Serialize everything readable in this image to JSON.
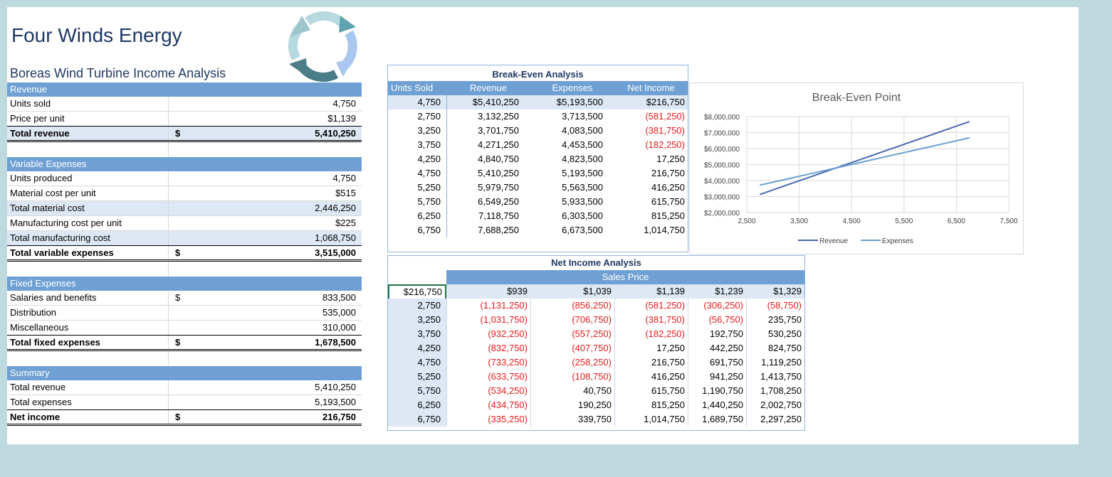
{
  "company": "Four Winds Energy",
  "subtitle": "Boreas Wind Turbine Income Analysis",
  "logo_icon": "cycle-arrows-icon",
  "income": {
    "revenue_header": "Revenue",
    "units_sold_label": "Units sold",
    "units_sold": "4,750",
    "price_label": "Price per unit",
    "price": "$1,139",
    "total_revenue_label": "Total revenue",
    "total_revenue": "5,410,250",
    "var_header": "Variable Expenses",
    "units_produced_label": "Units produced",
    "units_produced": "4,750",
    "material_cost_label": "Material cost per unit",
    "material_cost": "$515",
    "total_material_label": "Total material cost",
    "total_material": "2,446,250",
    "mfg_cost_label": "Manufacturing cost per unit",
    "mfg_cost": "$225",
    "total_mfg_label": "Total manufacturing cost",
    "total_mfg": "1,068,750",
    "total_var_label": "Total variable expenses",
    "total_var": "3,515,000",
    "fixed_header": "Fixed Expenses",
    "salaries_label": "Salaries and benefits",
    "salaries": "833,500",
    "distribution_label": "Distribution",
    "distribution": "535,000",
    "misc_label": "Miscellaneous",
    "misc": "310,000",
    "total_fixed_label": "Total fixed expenses",
    "total_fixed": "1,678,500",
    "summary_header": "Summary",
    "sum_revenue_label": "Total revenue",
    "sum_revenue": "5,410,250",
    "sum_expenses_label": "Total expenses",
    "sum_expenses": "5,193,500",
    "net_income_label": "Net income",
    "net_income": "216,750",
    "dollar": "$"
  },
  "break_even": {
    "title": "Break-Even Analysis",
    "headers": [
      "Units Sold",
      "Revenue",
      "Expenses",
      "Net Income"
    ],
    "rows": [
      [
        "4,750",
        "$5,410,250",
        "$5,193,500",
        "$216,750"
      ],
      [
        "2,750",
        "3,132,250",
        "3,713,500",
        "(581,250)"
      ],
      [
        "3,250",
        "3,701,750",
        "4,083,500",
        "(381,750)"
      ],
      [
        "3,750",
        "4,271,250",
        "4,453,500",
        "(182,250)"
      ],
      [
        "4,250",
        "4,840,750",
        "4,823,500",
        "17,250"
      ],
      [
        "4,750",
        "5,410,250",
        "5,193,500",
        "216,750"
      ],
      [
        "5,250",
        "5,979,750",
        "5,563,500",
        "416,250"
      ],
      [
        "5,750",
        "6,549,250",
        "5,933,500",
        "615,750"
      ],
      [
        "6,250",
        "7,118,750",
        "6,303,500",
        "815,250"
      ],
      [
        "6,750",
        "7,688,250",
        "6,673,500",
        "1,014,750"
      ]
    ]
  },
  "net_income_analysis": {
    "title": "Net Income Analysis",
    "subtitle": "Sales Price",
    "corner": "$216,750",
    "prices": [
      "$939",
      "$1,039",
      "$1,139",
      "$1,239",
      "$1,329"
    ],
    "rows": [
      [
        "2,750",
        "(1,131,250)",
        "(856,250)",
        "(581,250)",
        "(306,250)",
        "(58,750)"
      ],
      [
        "3,250",
        "(1,031,750)",
        "(706,750)",
        "(381,750)",
        "(56,750)",
        "235,750"
      ],
      [
        "3,750",
        "(932,250)",
        "(557,250)",
        "(182,250)",
        "192,750",
        "530,250"
      ],
      [
        "4,250",
        "(832,750)",
        "(407,750)",
        "17,250",
        "442,250",
        "824,750"
      ],
      [
        "4,750",
        "(733,250)",
        "(258,250)",
        "216,750",
        "691,750",
        "1,119,250"
      ],
      [
        "5,250",
        "(633,750)",
        "(108,750)",
        "416,250",
        "941,250",
        "1,413,750"
      ],
      [
        "5,750",
        "(534,250)",
        "40,750",
        "615,750",
        "1,190,750",
        "1,708,250"
      ],
      [
        "6,250",
        "(434,750)",
        "190,250",
        "815,250",
        "1,440,250",
        "2,002,750"
      ],
      [
        "6,750",
        "(335,250)",
        "339,750",
        "1,014,750",
        "1,689,750",
        "2,297,250"
      ]
    ]
  },
  "chart_data": {
    "type": "line",
    "title": "Break-Even Point",
    "x": [
      2750,
      3250,
      3750,
      4250,
      4750,
      5250,
      5750,
      6250,
      6750
    ],
    "x_ticks": [
      "2,500",
      "3,500",
      "4,500",
      "5,500",
      "6,500",
      "7,500"
    ],
    "x_tick_values": [
      2500,
      3500,
      4500,
      5500,
      6500,
      7500
    ],
    "y_ticks": [
      "$8,000,000",
      "$7,000,000",
      "$6,000,000",
      "$5,000,000",
      "$4,000,000",
      "$3,000,000",
      "$2,000,000"
    ],
    "y_tick_values": [
      8000000,
      7000000,
      6000000,
      5000000,
      4000000,
      3000000,
      2000000
    ],
    "xlim": [
      2500,
      7500
    ],
    "ylim": [
      2000000,
      8000000
    ],
    "series": [
      {
        "name": "Revenue",
        "color": "#4a69ad",
        "values": [
          3132250,
          3701750,
          4271250,
          4840750,
          5410250,
          5979750,
          6549250,
          7118750,
          7688250
        ]
      },
      {
        "name": "Expenses",
        "color": "#6a9fd4",
        "values": [
          3713500,
          4083500,
          4453500,
          4823500,
          5193500,
          5563500,
          5933500,
          6303500,
          6673500
        ]
      }
    ]
  },
  "colors": {
    "header_blue": "#6fa0d3",
    "shade_blue": "#dde8f4",
    "negative_red": "#e41b1b",
    "title_navy": "#1f3864"
  }
}
